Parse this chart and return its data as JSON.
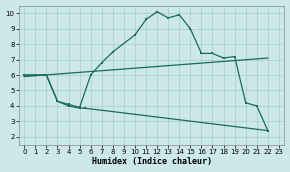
{
  "title": "",
  "xlabel": "Humidex (Indice chaleur)",
  "background_color": "#cce8e8",
  "grid_color": "#aacccc",
  "line_color": "#1a6b5a",
  "xlim": [
    -0.5,
    23.5
  ],
  "ylim": [
    1.5,
    10.5
  ],
  "xticks": [
    0,
    1,
    2,
    3,
    4,
    5,
    6,
    7,
    8,
    9,
    10,
    11,
    12,
    13,
    14,
    15,
    16,
    17,
    18,
    19,
    20,
    21,
    22,
    23
  ],
  "yticks": [
    2,
    3,
    4,
    5,
    6,
    7,
    8,
    9,
    10
  ],
  "upper_curve_x": [
    0,
    1,
    2,
    3,
    4,
    5,
    6,
    7,
    8,
    10,
    11,
    12,
    13,
    14,
    15,
    16,
    17,
    18,
    19,
    20,
    21,
    22
  ],
  "upper_curve_y": [
    6.0,
    6.0,
    6.0,
    4.3,
    4.1,
    3.9,
    6.0,
    6.8,
    7.5,
    8.6,
    9.6,
    10.1,
    9.7,
    9.9,
    9.0,
    7.4,
    7.4,
    7.1,
    7.2,
    4.2,
    4.0,
    2.4
  ],
  "lower_curve_x": [
    0,
    2,
    3,
    4,
    5,
    6,
    22
  ],
  "lower_curve_y": [
    6.0,
    6.0,
    4.3,
    4.0,
    3.85,
    3.85,
    2.4
  ],
  "diag_line_x": [
    0,
    22
  ],
  "diag_line_y": [
    5.9,
    7.1
  ],
  "xlabel_fontsize": 6,
  "tick_fontsize": 5,
  "linewidth": 0.9,
  "markersize": 2.0
}
